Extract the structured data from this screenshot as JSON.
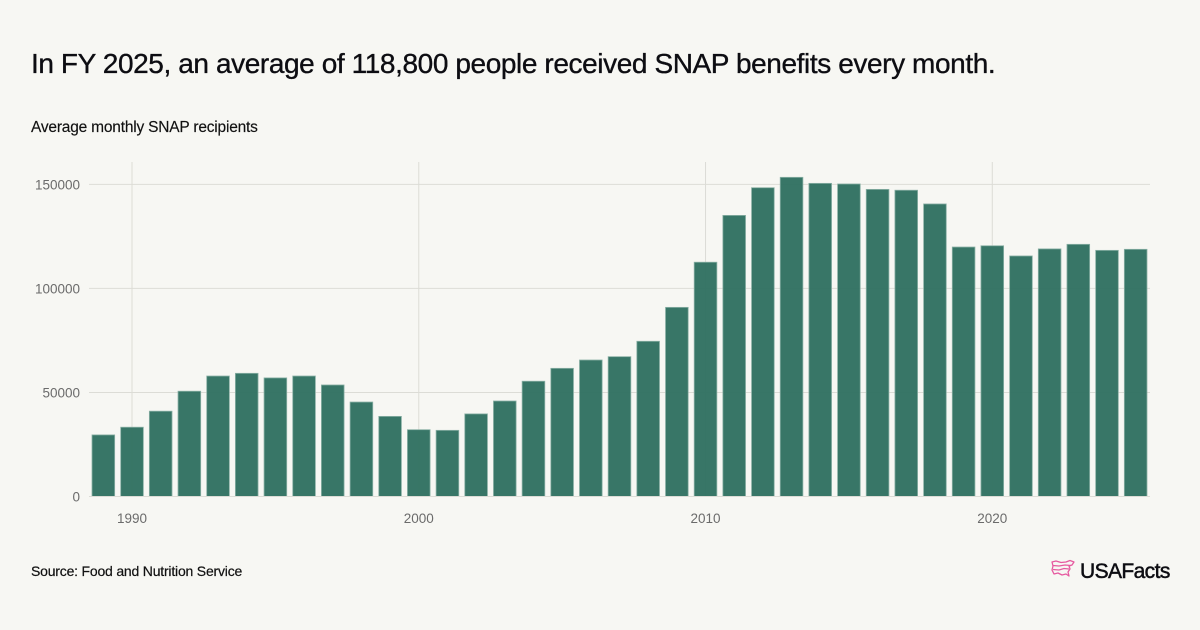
{
  "header": {
    "title": "In FY 2025, an average of 118,800 people received SNAP benefits every month.",
    "subtitle": "Average monthly SNAP recipients"
  },
  "footer": {
    "source": "Source: Food and Nutrition Service",
    "logo_text": "USAFacts",
    "logo_icon": "us-map-flag-icon"
  },
  "colors": {
    "background": "#f7f7f3",
    "bar_fill": "#327262",
    "bar_stroke": "#8ab0a5",
    "grid": "#dcdcd6",
    "tick_text": "#6b6b6b",
    "logo_accent": "#e65aa0"
  },
  "chart_data": {
    "type": "bar",
    "title": "In FY 2025, an average of 118,800 people received SNAP benefits every month.",
    "subtitle": "Average monthly SNAP recipients",
    "xlabel": "",
    "ylabel": "",
    "ylim": [
      0,
      160000
    ],
    "yticks": [
      0,
      50000,
      100000,
      150000
    ],
    "ytick_labels": [
      "0",
      "50000",
      "100000",
      "150000"
    ],
    "xticks": [
      1990,
      2000,
      2010,
      2020
    ],
    "xtick_labels": [
      "1990",
      "2000",
      "2010",
      "2020"
    ],
    "grid": true,
    "legend": "none",
    "categories": [
      1989,
      1990,
      1991,
      1992,
      1993,
      1994,
      1995,
      1996,
      1997,
      1998,
      1999,
      2000,
      2001,
      2002,
      2003,
      2004,
      2005,
      2006,
      2007,
      2008,
      2009,
      2010,
      2011,
      2012,
      2013,
      2014,
      2015,
      2016,
      2017,
      2018,
      2019,
      2020,
      2021,
      2022,
      2023,
      2024,
      2025
    ],
    "values": [
      29600,
      33300,
      41000,
      50600,
      57900,
      59200,
      57000,
      57900,
      53600,
      45400,
      38500,
      32100,
      31800,
      39700,
      45900,
      55400,
      61600,
      65600,
      67200,
      74600,
      90900,
      112600,
      135100,
      148400,
      153400,
      150500,
      150200,
      147600,
      147200,
      140600,
      119900,
      120500,
      115600,
      119000,
      121200,
      118300,
      118800
    ]
  }
}
